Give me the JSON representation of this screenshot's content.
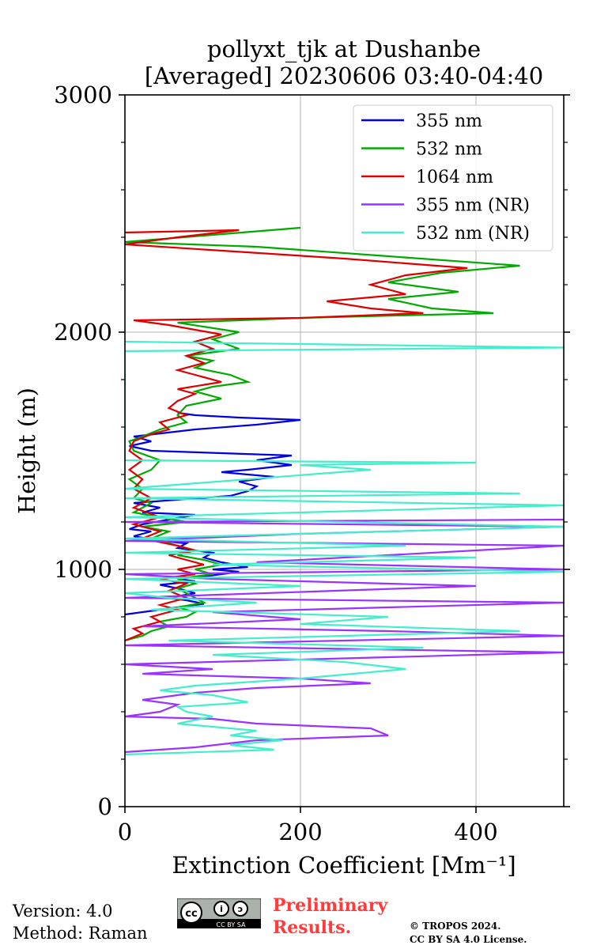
{
  "chart_data": {
    "type": "line",
    "orientation": "vertical-profile",
    "title_line1": "pollyxt_tjk at Dushanbe",
    "title_line2": "[Averaged] 20230606 03:40-04:40",
    "xlabel": "Extinction Coefficient [Mm⁻¹]",
    "ylabel": "Height (m)",
    "xlim": [
      0,
      500
    ],
    "ylim": [
      0,
      3000
    ],
    "x_ticks": [
      "0",
      "200",
      "400"
    ],
    "x_tick_values": [
      0,
      200,
      400
    ],
    "y_ticks": [
      "0",
      "1000",
      "2000",
      "3000"
    ],
    "y_tick_values": [
      0,
      1000,
      2000,
      3000
    ],
    "grid": true,
    "legend_position": "top-right",
    "series": [
      {
        "name": "355 nm",
        "color": "#0000e0",
        "points": [
          [
            0,
            810
          ],
          [
            20,
            820
          ],
          [
            60,
            840
          ],
          [
            90,
            855
          ],
          [
            70,
            870
          ],
          [
            50,
            880
          ],
          [
            80,
            900
          ],
          [
            60,
            920
          ],
          [
            40,
            935
          ],
          [
            80,
            950
          ],
          [
            60,
            960
          ],
          [
            100,
            975
          ],
          [
            130,
            990
          ],
          [
            100,
            1000
          ],
          [
            140,
            1010
          ],
          [
            110,
            1030
          ],
          [
            90,
            1050
          ],
          [
            100,
            1070
          ],
          [
            60,
            1090
          ],
          [
            70,
            1110
          ],
          [
            40,
            1120
          ],
          [
            10,
            1140
          ],
          [
            30,
            1160
          ],
          [
            5,
            1170
          ],
          [
            20,
            1190
          ],
          [
            50,
            1210
          ],
          [
            80,
            1230
          ],
          [
            20,
            1240
          ],
          [
            40,
            1260
          ],
          [
            10,
            1280
          ],
          [
            120,
            1310
          ],
          [
            140,
            1330
          ],
          [
            150,
            1350
          ],
          [
            130,
            1370
          ],
          [
            170,
            1390
          ],
          [
            110,
            1410
          ],
          [
            140,
            1420
          ],
          [
            190,
            1440
          ],
          [
            150,
            1460
          ],
          [
            190,
            1480
          ],
          [
            30,
            1500
          ],
          [
            5,
            1520
          ],
          [
            30,
            1540
          ],
          [
            10,
            1560
          ],
          [
            80,
            1590
          ],
          [
            150,
            1610
          ],
          [
            200,
            1630
          ],
          [
            130,
            1640
          ],
          [
            80,
            1650
          ],
          [
            60,
            1660
          ]
        ]
      },
      {
        "name": "532 nm",
        "color": "#00aa00",
        "points": [
          [
            0,
            700
          ],
          [
            20,
            720
          ],
          [
            30,
            740
          ],
          [
            50,
            760
          ],
          [
            40,
            780
          ],
          [
            70,
            800
          ],
          [
            80,
            820
          ],
          [
            60,
            840
          ],
          [
            90,
            860
          ],
          [
            80,
            880
          ],
          [
            70,
            900
          ],
          [
            60,
            920
          ],
          [
            80,
            940
          ],
          [
            60,
            960
          ],
          [
            100,
            980
          ],
          [
            80,
            1000
          ],
          [
            110,
            1020
          ],
          [
            90,
            1040
          ],
          [
            60,
            1060
          ],
          [
            80,
            1080
          ],
          [
            60,
            1100
          ],
          [
            30,
            1130
          ],
          [
            50,
            1160
          ],
          [
            20,
            1180
          ],
          [
            70,
            1200
          ],
          [
            40,
            1220
          ],
          [
            10,
            1240
          ],
          [
            30,
            1280
          ],
          [
            10,
            1300
          ],
          [
            20,
            1340
          ],
          [
            5,
            1380
          ],
          [
            30,
            1420
          ],
          [
            40,
            1460
          ],
          [
            10,
            1500
          ],
          [
            5,
            1540
          ],
          [
            20,
            1560
          ],
          [
            40,
            1590
          ],
          [
            70,
            1620
          ],
          [
            60,
            1650
          ],
          [
            70,
            1690
          ],
          [
            110,
            1720
          ],
          [
            80,
            1750
          ],
          [
            100,
            1770
          ],
          [
            140,
            1790
          ],
          [
            120,
            1820
          ],
          [
            80,
            1850
          ],
          [
            100,
            1880
          ],
          [
            70,
            1900
          ],
          [
            130,
            1930
          ],
          [
            100,
            1970
          ],
          [
            130,
            2000
          ],
          [
            60,
            2040
          ],
          [
            200,
            2060
          ],
          [
            420,
            2080
          ],
          [
            350,
            2100
          ],
          [
            300,
            2140
          ],
          [
            380,
            2170
          ],
          [
            300,
            2210
          ],
          [
            360,
            2250
          ],
          [
            450,
            2280
          ],
          [
            300,
            2320
          ],
          [
            150,
            2360
          ],
          [
            0,
            2380
          ],
          [
            100,
            2410
          ],
          [
            200,
            2440
          ]
        ]
      },
      {
        "name": "1064 nm",
        "color": "#dd0000",
        "points": [
          [
            0,
            700
          ],
          [
            20,
            730
          ],
          [
            10,
            750
          ],
          [
            40,
            780
          ],
          [
            30,
            800
          ],
          [
            60,
            830
          ],
          [
            40,
            850
          ],
          [
            70,
            880
          ],
          [
            50,
            910
          ],
          [
            70,
            940
          ],
          [
            40,
            960
          ],
          [
            80,
            980
          ],
          [
            60,
            1000
          ],
          [
            90,
            1020
          ],
          [
            70,
            1040
          ],
          [
            50,
            1060
          ],
          [
            80,
            1080
          ],
          [
            60,
            1100
          ],
          [
            20,
            1130
          ],
          [
            40,
            1160
          ],
          [
            10,
            1190
          ],
          [
            40,
            1220
          ],
          [
            10,
            1260
          ],
          [
            30,
            1300
          ],
          [
            10,
            1340
          ],
          [
            20,
            1380
          ],
          [
            5,
            1420
          ],
          [
            20,
            1460
          ],
          [
            5,
            1500
          ],
          [
            10,
            1540
          ],
          [
            30,
            1570
          ],
          [
            50,
            1590
          ],
          [
            40,
            1620
          ],
          [
            70,
            1650
          ],
          [
            50,
            1680
          ],
          [
            60,
            1710
          ],
          [
            80,
            1740
          ],
          [
            60,
            1760
          ],
          [
            110,
            1790
          ],
          [
            80,
            1820
          ],
          [
            60,
            1840
          ],
          [
            90,
            1870
          ],
          [
            70,
            1900
          ],
          [
            100,
            1930
          ],
          [
            80,
            1960
          ],
          [
            110,
            1990
          ],
          [
            50,
            2030
          ],
          [
            10,
            2050
          ],
          [
            200,
            2060
          ],
          [
            340,
            2080
          ],
          [
            280,
            2100
          ],
          [
            230,
            2130
          ],
          [
            320,
            2160
          ],
          [
            280,
            2200
          ],
          [
            320,
            2240
          ],
          [
            390,
            2270
          ],
          [
            250,
            2310
          ],
          [
            0,
            2370
          ],
          [
            60,
            2400
          ],
          [
            130,
            2430
          ],
          [
            0,
            2420
          ]
        ]
      },
      {
        "name": "355 nm (NR)",
        "color": "#9933ff",
        "points": [
          [
            0,
            230
          ],
          [
            80,
            250
          ],
          [
            150,
            280
          ],
          [
            300,
            300
          ],
          [
            280,
            330
          ],
          [
            150,
            350
          ],
          [
            100,
            370
          ],
          [
            0,
            380
          ],
          [
            40,
            400
          ],
          [
            60,
            430
          ],
          [
            20,
            450
          ],
          [
            80,
            480
          ],
          [
            150,
            500
          ],
          [
            280,
            520
          ],
          [
            200,
            540
          ],
          [
            20,
            560
          ],
          [
            100,
            580
          ],
          [
            0,
            600
          ],
          [
            500,
            650
          ],
          [
            0,
            680
          ],
          [
            500,
            720
          ],
          [
            300,
            740
          ],
          [
            20,
            760
          ],
          [
            200,
            790
          ],
          [
            100,
            820
          ],
          [
            500,
            860
          ],
          [
            0,
            880
          ],
          [
            400,
            930
          ],
          [
            100,
            960
          ],
          [
            0,
            980
          ],
          [
            500,
            1000
          ],
          [
            150,
            1030
          ],
          [
            300,
            1060
          ],
          [
            500,
            1100
          ],
          [
            0,
            1120
          ],
          [
            200,
            1150
          ],
          [
            500,
            1180
          ],
          [
            0,
            1200
          ],
          [
            500,
            1210
          ]
        ]
      },
      {
        "name": "532 nm (NR)",
        "color": "#44eecc",
        "points": [
          [
            0,
            220
          ],
          [
            170,
            240
          ],
          [
            120,
            260
          ],
          [
            180,
            280
          ],
          [
            120,
            300
          ],
          [
            150,
            320
          ],
          [
            60,
            350
          ],
          [
            100,
            380
          ],
          [
            70,
            400
          ],
          [
            60,
            420
          ],
          [
            140,
            440
          ],
          [
            100,
            470
          ],
          [
            40,
            490
          ],
          [
            80,
            510
          ],
          [
            200,
            540
          ],
          [
            320,
            580
          ],
          [
            250,
            610
          ],
          [
            100,
            640
          ],
          [
            340,
            670
          ],
          [
            50,
            700
          ],
          [
            450,
            740
          ],
          [
            200,
            770
          ],
          [
            300,
            800
          ],
          [
            30,
            830
          ],
          [
            150,
            860
          ],
          [
            50,
            880
          ],
          [
            0,
            900
          ],
          [
            200,
            930
          ],
          [
            0,
            960
          ],
          [
            500,
            990
          ],
          [
            100,
            1020
          ],
          [
            400,
            1050
          ],
          [
            0,
            1070
          ],
          [
            320,
            1100
          ],
          [
            0,
            1130
          ],
          [
            500,
            1180
          ],
          [
            0,
            1220
          ],
          [
            500,
            1270
          ],
          [
            0,
            1300
          ],
          [
            450,
            1320
          ],
          [
            0,
            1340
          ],
          [
            280,
            1420
          ],
          [
            200,
            1440
          ],
          [
            400,
            1450
          ],
          [
            0,
            1460
          ],
          [
            0,
            1920
          ],
          [
            500,
            1935
          ],
          [
            200,
            1950
          ],
          [
            0,
            1960
          ]
        ]
      }
    ]
  },
  "footer": {
    "version": "Version: 4.0",
    "method": "Method: Raman",
    "preliminary_line1": "Preliminary",
    "preliminary_line2": "Results.",
    "copyright_line1": "© TROPOS 2024.",
    "copyright_line2": "CC BY SA 4.0 License.",
    "license_badge": "CC BY SA"
  }
}
